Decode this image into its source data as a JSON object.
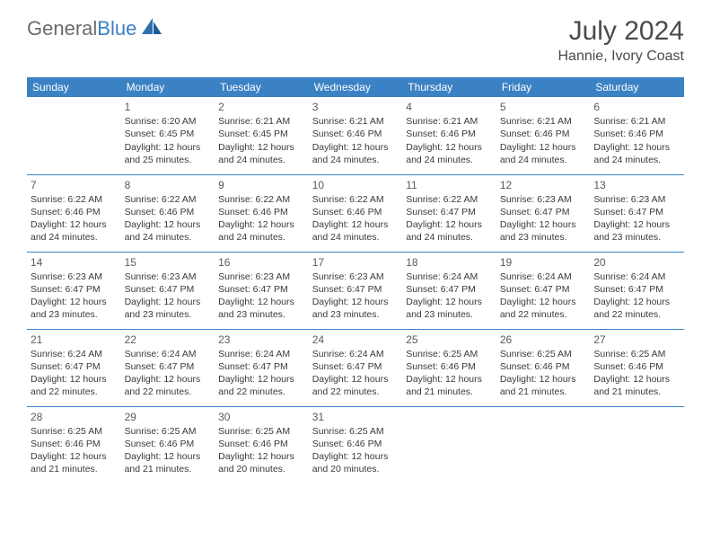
{
  "brand": {
    "part1": "General",
    "part2": "Blue"
  },
  "title": "July 2024",
  "location": "Hannie, Ivory Coast",
  "dayHeaders": [
    "Sunday",
    "Monday",
    "Tuesday",
    "Wednesday",
    "Thursday",
    "Friday",
    "Saturday"
  ],
  "colors": {
    "headerBg": "#3b82c4",
    "headerText": "#ffffff",
    "border": "#3b82c4",
    "logoGray": "#6b6b6b",
    "logoBlue": "#2f6fb0",
    "text": "#3a3a3a"
  },
  "typography": {
    "titleSize": 30,
    "locationSize": 16,
    "headerSize": 12,
    "cellSize": 10.5,
    "daynumSize": 12
  },
  "startOffset": 1,
  "days": [
    {
      "n": 1,
      "sunrise": "6:20 AM",
      "sunset": "6:45 PM",
      "daylight": "12 hours and 25 minutes."
    },
    {
      "n": 2,
      "sunrise": "6:21 AM",
      "sunset": "6:45 PM",
      "daylight": "12 hours and 24 minutes."
    },
    {
      "n": 3,
      "sunrise": "6:21 AM",
      "sunset": "6:46 PM",
      "daylight": "12 hours and 24 minutes."
    },
    {
      "n": 4,
      "sunrise": "6:21 AM",
      "sunset": "6:46 PM",
      "daylight": "12 hours and 24 minutes."
    },
    {
      "n": 5,
      "sunrise": "6:21 AM",
      "sunset": "6:46 PM",
      "daylight": "12 hours and 24 minutes."
    },
    {
      "n": 6,
      "sunrise": "6:21 AM",
      "sunset": "6:46 PM",
      "daylight": "12 hours and 24 minutes."
    },
    {
      "n": 7,
      "sunrise": "6:22 AM",
      "sunset": "6:46 PM",
      "daylight": "12 hours and 24 minutes."
    },
    {
      "n": 8,
      "sunrise": "6:22 AM",
      "sunset": "6:46 PM",
      "daylight": "12 hours and 24 minutes."
    },
    {
      "n": 9,
      "sunrise": "6:22 AM",
      "sunset": "6:46 PM",
      "daylight": "12 hours and 24 minutes."
    },
    {
      "n": 10,
      "sunrise": "6:22 AM",
      "sunset": "6:46 PM",
      "daylight": "12 hours and 24 minutes."
    },
    {
      "n": 11,
      "sunrise": "6:22 AM",
      "sunset": "6:47 PM",
      "daylight": "12 hours and 24 minutes."
    },
    {
      "n": 12,
      "sunrise": "6:23 AM",
      "sunset": "6:47 PM",
      "daylight": "12 hours and 23 minutes."
    },
    {
      "n": 13,
      "sunrise": "6:23 AM",
      "sunset": "6:47 PM",
      "daylight": "12 hours and 23 minutes."
    },
    {
      "n": 14,
      "sunrise": "6:23 AM",
      "sunset": "6:47 PM",
      "daylight": "12 hours and 23 minutes."
    },
    {
      "n": 15,
      "sunrise": "6:23 AM",
      "sunset": "6:47 PM",
      "daylight": "12 hours and 23 minutes."
    },
    {
      "n": 16,
      "sunrise": "6:23 AM",
      "sunset": "6:47 PM",
      "daylight": "12 hours and 23 minutes."
    },
    {
      "n": 17,
      "sunrise": "6:23 AM",
      "sunset": "6:47 PM",
      "daylight": "12 hours and 23 minutes."
    },
    {
      "n": 18,
      "sunrise": "6:24 AM",
      "sunset": "6:47 PM",
      "daylight": "12 hours and 23 minutes."
    },
    {
      "n": 19,
      "sunrise": "6:24 AM",
      "sunset": "6:47 PM",
      "daylight": "12 hours and 22 minutes."
    },
    {
      "n": 20,
      "sunrise": "6:24 AM",
      "sunset": "6:47 PM",
      "daylight": "12 hours and 22 minutes."
    },
    {
      "n": 21,
      "sunrise": "6:24 AM",
      "sunset": "6:47 PM",
      "daylight": "12 hours and 22 minutes."
    },
    {
      "n": 22,
      "sunrise": "6:24 AM",
      "sunset": "6:47 PM",
      "daylight": "12 hours and 22 minutes."
    },
    {
      "n": 23,
      "sunrise": "6:24 AM",
      "sunset": "6:47 PM",
      "daylight": "12 hours and 22 minutes."
    },
    {
      "n": 24,
      "sunrise": "6:24 AM",
      "sunset": "6:47 PM",
      "daylight": "12 hours and 22 minutes."
    },
    {
      "n": 25,
      "sunrise": "6:25 AM",
      "sunset": "6:46 PM",
      "daylight": "12 hours and 21 minutes."
    },
    {
      "n": 26,
      "sunrise": "6:25 AM",
      "sunset": "6:46 PM",
      "daylight": "12 hours and 21 minutes."
    },
    {
      "n": 27,
      "sunrise": "6:25 AM",
      "sunset": "6:46 PM",
      "daylight": "12 hours and 21 minutes."
    },
    {
      "n": 28,
      "sunrise": "6:25 AM",
      "sunset": "6:46 PM",
      "daylight": "12 hours and 21 minutes."
    },
    {
      "n": 29,
      "sunrise": "6:25 AM",
      "sunset": "6:46 PM",
      "daylight": "12 hours and 21 minutes."
    },
    {
      "n": 30,
      "sunrise": "6:25 AM",
      "sunset": "6:46 PM",
      "daylight": "12 hours and 20 minutes."
    },
    {
      "n": 31,
      "sunrise": "6:25 AM",
      "sunset": "6:46 PM",
      "daylight": "12 hours and 20 minutes."
    }
  ],
  "labels": {
    "sunrise": "Sunrise:",
    "sunset": "Sunset:",
    "daylight": "Daylight:"
  }
}
